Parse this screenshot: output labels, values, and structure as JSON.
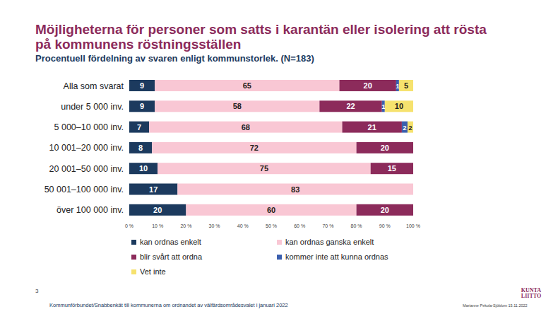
{
  "chart_data": {
    "type": "bar",
    "orientation": "horizontal",
    "stacked": true,
    "data_labels": true,
    "grid": false,
    "legend": "bottom",
    "title": "Möjligheterna för personer som satts i karantän eller isolering att rösta på kommunens röstningsställen",
    "subtitle": "Procentuell fördelning av svaren enligt kommunstorlek. (N=183)",
    "categories": [
      "Alla som svarat",
      "under 5 000 inv.",
      "5 000–10 000 inv.",
      "10 001–20 000 inv.",
      "20 001–50 000 inv.",
      "50 001–100 000 inv.",
      "över 100 000 inv."
    ],
    "series": [
      {
        "name": "kan ordnas enkelt",
        "color": "#1c3a5e",
        "values": [
          9,
          9,
          7,
          8,
          10,
          17,
          20
        ]
      },
      {
        "name": "kan ordnas ganska enkelt",
        "color": "#f9c7d4",
        "values": [
          65,
          58,
          68,
          72,
          75,
          83,
          60
        ]
      },
      {
        "name": "blir svårt att ordna",
        "color": "#8c2b5b",
        "values": [
          20,
          22,
          21,
          20,
          15,
          0,
          20
        ]
      },
      {
        "name": "kommer inte att kunna ordnas",
        "color": "#3b5fae",
        "values": [
          1,
          1,
          2,
          0,
          0,
          0,
          0
        ]
      },
      {
        "name": "Vet inte",
        "color": "#f6e26e",
        "values": [
          5,
          10,
          2,
          0,
          0,
          0,
          0
        ]
      }
    ],
    "xlim": [
      0,
      100
    ],
    "xticks": [
      {
        "value": 0,
        "label": "0 %"
      },
      {
        "value": 10,
        "label": "10 %"
      },
      {
        "value": 20,
        "label": "20 %"
      },
      {
        "value": 30,
        "label": "30 %"
      },
      {
        "value": 40,
        "label": "40 %"
      },
      {
        "value": 50,
        "label": "50 %"
      },
      {
        "value": 60,
        "label": "60 %"
      },
      {
        "value": 70,
        "label": "70 %"
      },
      {
        "value": 80,
        "label": "80 %"
      },
      {
        "value": 90,
        "label": "90 %"
      },
      {
        "value": 100,
        "label": "100 %"
      }
    ],
    "page_number": "3",
    "source": "Kommunförbundet/Snabbenkät till kommunerna  om ordnandet av välfärdsområdesvalet i januari 2022",
    "author": "Marianne Pekola-Sjöblom  15.11.2022",
    "logo": [
      "KUNTA",
      "LIITTO"
    ]
  }
}
